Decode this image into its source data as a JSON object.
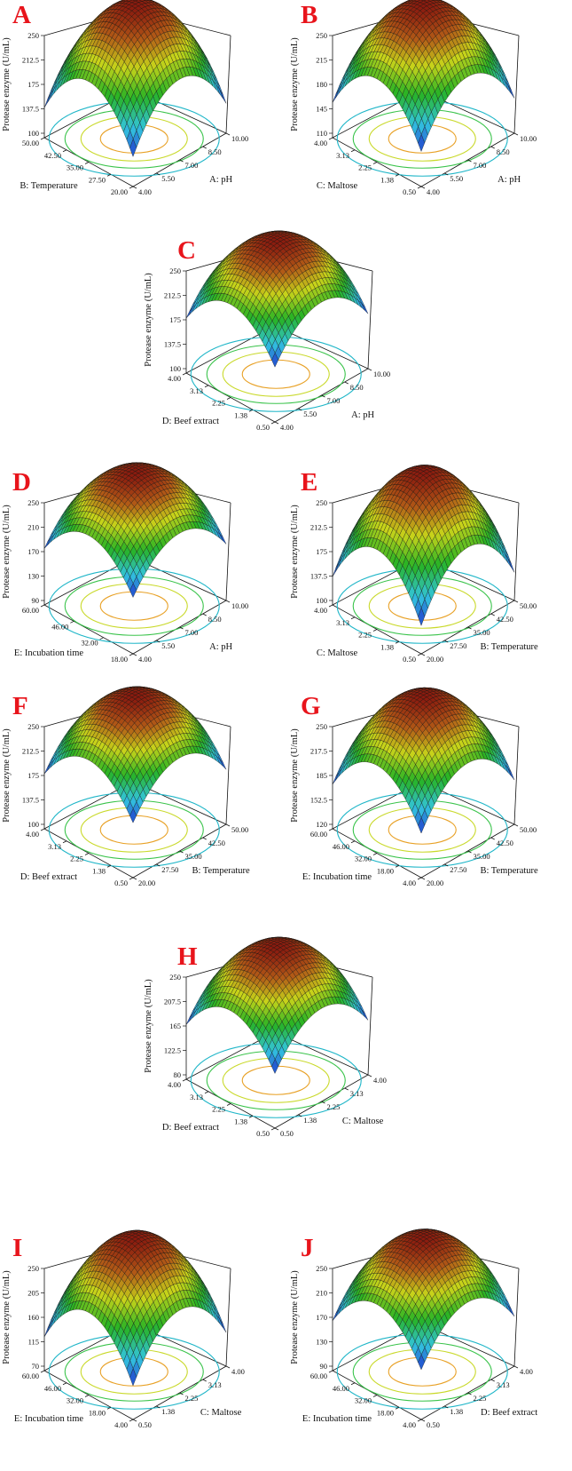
{
  "figure": {
    "colors": {
      "surface_low": "#1d2ecc",
      "surface_cyan": "#33c6e0",
      "surface_green": "#27b324",
      "surface_yellow": "#c7d31a",
      "surface_orange": "#b25a16",
      "surface_high": "#8a1a0f",
      "mesh": "#141414",
      "contours": [
        "#1fb6c8",
        "#39c34a",
        "#c9d92a",
        "#e8a126"
      ],
      "panel_label": "#e8141b"
    }
  },
  "chart_data": [
    {
      "type": "surface",
      "panel_label": "A",
      "zlabel": "Protease enzyme (U/mL)",
      "z_ticks": [
        "100",
        "137.5",
        "175",
        "212.5",
        "250"
      ],
      "zlim": [
        100,
        250
      ],
      "right_axis": {
        "label": "A: pH",
        "ticks": [
          "4.00",
          "5.50",
          "7.00",
          "8.50",
          "10.00"
        ]
      },
      "left_axis": {
        "label": "B: Temperature",
        "ticks": [
          "20.00",
          "27.50",
          "35.00",
          "42.50",
          "50.00"
        ]
      },
      "peak_value": 250,
      "min_value": 75
    },
    {
      "type": "surface",
      "panel_label": "B",
      "zlabel": "Protease enzyme (U/mL)",
      "z_ticks": [
        "110",
        "145",
        "180",
        "215",
        "250"
      ],
      "zlim": [
        110,
        250
      ],
      "right_axis": {
        "label": "A: pH",
        "ticks": [
          "4.00",
          "5.50",
          "7.00",
          "8.50",
          "10.00"
        ]
      },
      "left_axis": {
        "label": "C: Maltose",
        "ticks": [
          "0.50",
          "1.38",
          "2.25",
          "3.13",
          "4.00"
        ]
      },
      "peak_value": 250,
      "min_value": 95
    },
    {
      "type": "surface",
      "panel_label": "C",
      "zlabel": "Protease enzyme (U/mL)",
      "z_ticks": [
        "100",
        "137.5",
        "175",
        "212.5",
        "250"
      ],
      "zlim": [
        100,
        250
      ],
      "right_axis": {
        "label": "A: pH",
        "ticks": [
          "4.00",
          "5.50",
          "7.00",
          "8.50",
          "10.00"
        ]
      },
      "left_axis": {
        "label": "D: Beef extract",
        "ticks": [
          "0.50",
          "1.38",
          "2.25",
          "3.13",
          "4.00"
        ]
      },
      "peak_value": 250,
      "min_value": 118
    },
    {
      "type": "surface",
      "panel_label": "D",
      "zlabel": "Protease enzyme (U/mL)",
      "z_ticks": [
        "90",
        "130",
        "170",
        "210",
        "250"
      ],
      "zlim": [
        90,
        250
      ],
      "right_axis": {
        "label": "A: pH",
        "ticks": [
          "4.00",
          "5.50",
          "7.00",
          "8.50",
          "10.00"
        ]
      },
      "left_axis": {
        "label": "E: Incubation time",
        "ticks": [
          "18.00",
          "32.00",
          "46.00",
          "60.00"
        ]
      },
      "peak_value": 250,
      "min_value": 112
    },
    {
      "type": "surface",
      "panel_label": "E",
      "zlabel": "Protease enzyme (U/mL)",
      "z_ticks": [
        "100",
        "137.5",
        "175",
        "212.5",
        "250"
      ],
      "zlim": [
        100,
        250
      ],
      "right_axis": {
        "label": "B: Temperature",
        "ticks": [
          "20.00",
          "27.50",
          "35.00",
          "42.50",
          "50.00"
        ]
      },
      "left_axis": {
        "label": "C: Maltose",
        "ticks": [
          "0.50",
          "1.38",
          "2.25",
          "3.13",
          "4.00"
        ]
      },
      "peak_value": 250,
      "min_value": 72
    },
    {
      "type": "surface",
      "panel_label": "F",
      "zlabel": "Protease enzyme (U/mL)",
      "z_ticks": [
        "100",
        "137.5",
        "175",
        "212.5",
        "250"
      ],
      "zlim": [
        100,
        250
      ],
      "right_axis": {
        "label": "B: Temperature",
        "ticks": [
          "20.00",
          "27.50",
          "35.00",
          "42.50",
          "50.00"
        ]
      },
      "left_axis": {
        "label": "D: Beef extract",
        "ticks": [
          "0.50",
          "1.38",
          "2.25",
          "3.13",
          "4.00"
        ]
      },
      "peak_value": 250,
      "min_value": 118
    },
    {
      "type": "surface",
      "panel_label": "G",
      "zlabel": "Protease enzyme (U/mL)",
      "z_ticks": [
        "120",
        "152.5",
        "185",
        "217.5",
        "250"
      ],
      "zlim": [
        120,
        250
      ],
      "right_axis": {
        "label": "B: Temperature",
        "ticks": [
          "20.00",
          "27.50",
          "35.00",
          "42.50",
          "50.00"
        ]
      },
      "left_axis": {
        "label": "E: Incubation time",
        "ticks": [
          "4.00",
          "18.00",
          "32.00",
          "46.00",
          "60.00"
        ]
      },
      "peak_value": 250,
      "min_value": 120
    },
    {
      "type": "surface",
      "panel_label": "H",
      "zlabel": "Protease enzyme (U/mL)",
      "z_ticks": [
        "80",
        "122.5",
        "165",
        "207.5",
        "250"
      ],
      "zlim": [
        80,
        250
      ],
      "right_axis": {
        "label": "C: Maltose",
        "ticks": [
          "0.50",
          "1.38",
          "2.25",
          "3.13",
          "4.00"
        ]
      },
      "left_axis": {
        "label": "D: Beef extract",
        "ticks": [
          "0.50",
          "1.38",
          "2.25",
          "3.13",
          "4.00"
        ]
      },
      "peak_value": 250,
      "min_value": 100
    },
    {
      "type": "surface",
      "panel_label": "I",
      "zlabel": "Protease enzyme (U/mL)",
      "z_ticks": [
        "70",
        "115",
        "160",
        "205",
        "250"
      ],
      "zlim": [
        70,
        250
      ],
      "right_axis": {
        "label": "C: Maltose",
        "ticks": [
          "0.50",
          "1.38",
          "2.25",
          "3.13",
          "4.00"
        ]
      },
      "left_axis": {
        "label": "E: Incubation time",
        "ticks": [
          "4.00",
          "18.00",
          "32.00",
          "46.00",
          "60.00"
        ]
      },
      "peak_value": 250,
      "min_value": 48
    },
    {
      "type": "surface",
      "panel_label": "J",
      "zlabel": "Protease enzyme (U/mL)",
      "z_ticks": [
        "90",
        "130",
        "170",
        "210",
        "250"
      ],
      "zlim": [
        90,
        250
      ],
      "right_axis": {
        "label": "D: Beef extract",
        "ticks": [
          "0.50",
          "1.38",
          "2.25",
          "3.13",
          "4.00"
        ]
      },
      "left_axis": {
        "label": "E: Incubation time",
        "ticks": [
          "4.00",
          "18.00",
          "32.00",
          "46.00",
          "60.00"
        ]
      },
      "peak_value": 250,
      "min_value": 100
    }
  ]
}
